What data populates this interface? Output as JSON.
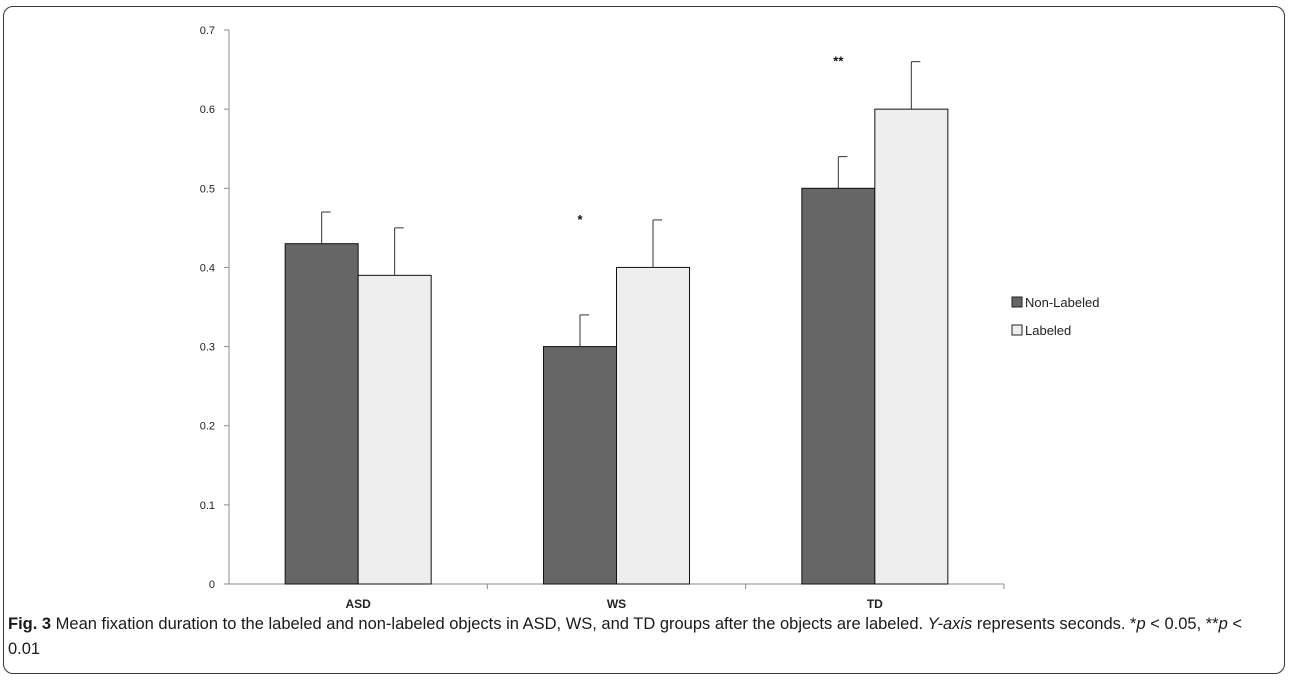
{
  "colors": {
    "non_labeled": "#666666",
    "labeled": "#eeeeee",
    "axis": "#8c8c8c",
    "bar_stroke": "#111111"
  },
  "chart_data": {
    "type": "bar",
    "categories": [
      "ASD",
      "WS",
      "TD"
    ],
    "series": [
      {
        "name": "Non-Labeled",
        "values": [
          0.43,
          0.3,
          0.5
        ],
        "errors": [
          0.04,
          0.04,
          0.04
        ]
      },
      {
        "name": "Labeled",
        "values": [
          0.39,
          0.4,
          0.6
        ],
        "errors": [
          0.06,
          0.06,
          0.06
        ]
      }
    ],
    "significance": [
      "",
      "*",
      "**"
    ],
    "ylim": [
      0,
      0.7
    ],
    "yticks": [
      "0",
      "0.1",
      "0.2",
      "0.3",
      "0.4",
      "0.5",
      "0.6",
      "0.7"
    ],
    "grid": false,
    "legend_position": "right",
    "xlabel": "",
    "ylabel": ""
  },
  "caption": {
    "fig_label": "Fig. 3",
    "text_1": " Mean fixation duration to the labeled and non-labeled objects in ASD, WS, and TD groups after the objects are labeled. ",
    "axis_name": "Y-axis",
    "text_2": " represents seconds. *",
    "p1": "p",
    "text_3": " < 0.05, **",
    "p2": "p",
    "text_4": " < 0.01"
  }
}
